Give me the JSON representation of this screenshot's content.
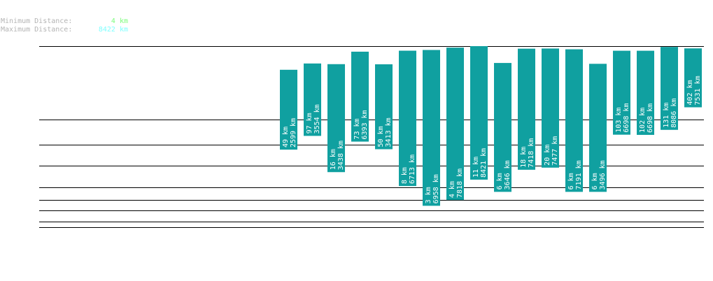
{
  "stats": {
    "min_label": "Minimum Distance:",
    "min_value": "4 km",
    "min_color": "#7cfc7c",
    "max_label": "Maximum Distance:",
    "max_value": "8422 km",
    "max_color": "#7fffff"
  },
  "chart_data": {
    "type": "bar",
    "bar_color": "#10a0a0",
    "line_color": "#000000",
    "label_color": "#ffffff",
    "label_unit": "km",
    "grid": "horizontal lines",
    "series": [
      {
        "min": 49,
        "max": 2599
      },
      {
        "min": 97,
        "max": 3554
      },
      {
        "min": 16,
        "max": 3438
      },
      {
        "min": 73,
        "max": 6393
      },
      {
        "min": 50,
        "max": 3413
      },
      {
        "min": 8,
        "max": 6713
      },
      {
        "min": 3,
        "max": 6958
      },
      {
        "min": 4,
        "max": 7818
      },
      {
        "min": 11,
        "max": 8421
      },
      {
        "min": 6,
        "max": 3646
      },
      {
        "min": 18,
        "max": 7418
      },
      {
        "min": 20,
        "max": 7477
      },
      {
        "min": 6,
        "max": 7191
      },
      {
        "min": 6,
        "max": 3496
      },
      {
        "min": 103,
        "max": 6698
      },
      {
        "min": 102,
        "max": 6698
      },
      {
        "min": 131,
        "max": 8086
      },
      {
        "min": 402,
        "max": 7531
      }
    ]
  }
}
